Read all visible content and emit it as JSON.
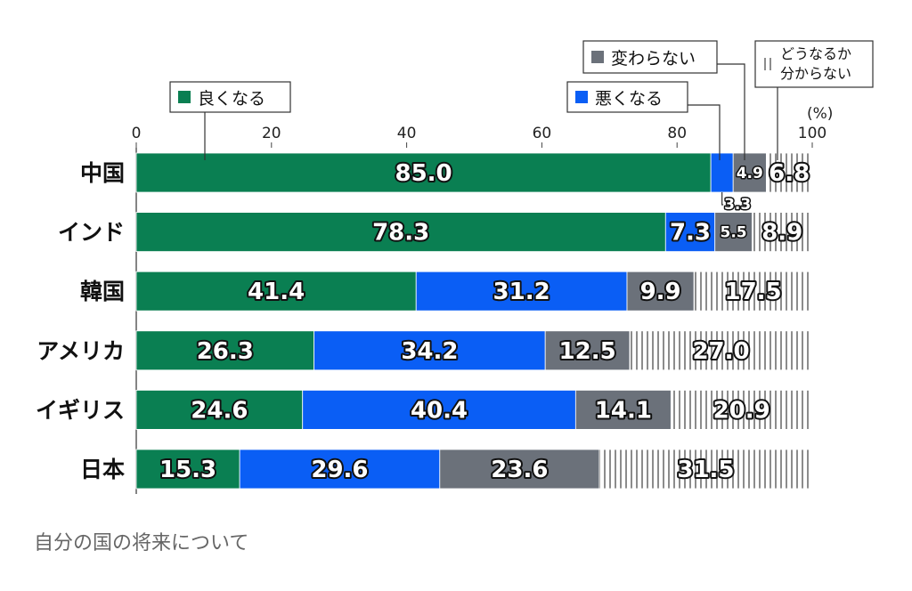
{
  "caption": "自分の国の将来について",
  "chart_data": {
    "type": "bar",
    "orientation": "horizontal",
    "stacked": true,
    "categories": [
      "中国",
      "インド",
      "韓国",
      "アメリカ",
      "イギリス",
      "日本"
    ],
    "xlim": [
      0,
      100
    ],
    "xticks": [
      "0",
      "20",
      "40",
      "60",
      "80",
      "100"
    ],
    "unit_label": "(%)",
    "series": [
      {
        "name": "良くなる",
        "color": "#0a7f52",
        "values": [
          85.0,
          78.3,
          41.4,
          26.3,
          24.6,
          15.3
        ]
      },
      {
        "name": "悪くなる",
        "color": "#0a5ef5",
        "values": [
          3.3,
          7.3,
          31.2,
          34.2,
          40.4,
          29.6
        ]
      },
      {
        "name": "変わらない",
        "color": "#6b717a",
        "values": [
          4.9,
          5.5,
          9.9,
          12.5,
          14.1,
          23.6
        ]
      },
      {
        "name_lines": [
          "どうなるか",
          "分からない"
        ],
        "color": "#ffffff",
        "pattern": "vertical-stripes",
        "values": [
          6.8,
          8.9,
          17.5,
          27.0,
          20.9,
          31.5
        ]
      }
    ],
    "value_labels": [
      [
        "85.0",
        "3.3",
        "4.9",
        "6.8"
      ],
      [
        "78.3",
        "7.3",
        "5.5",
        "8.9"
      ],
      [
        "41.4",
        "31.2",
        "9.9",
        "17.5"
      ],
      [
        "26.3",
        "34.2",
        "12.5",
        "27.0"
      ],
      [
        "24.6",
        "40.4",
        "14.1",
        "20.9"
      ],
      [
        "15.3",
        "29.6",
        "23.6",
        "31.5"
      ]
    ],
    "grid": false,
    "legend_placement": "top, callout boxes"
  }
}
